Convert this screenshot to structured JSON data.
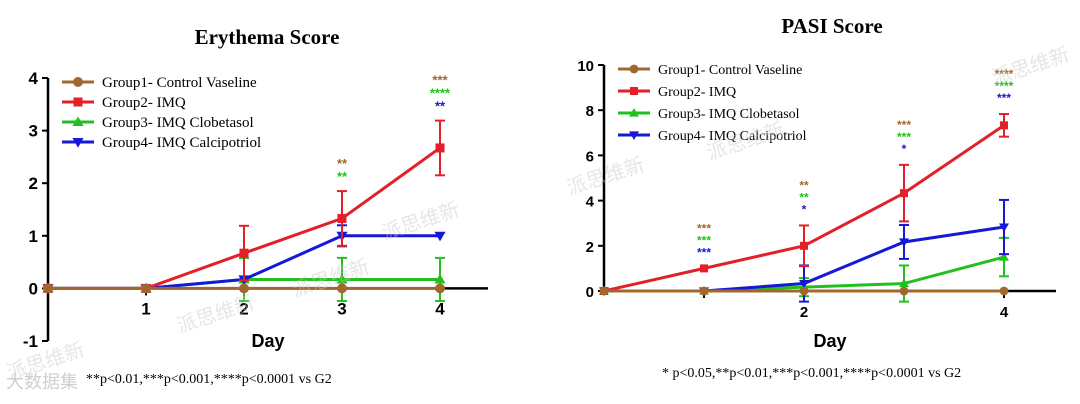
{
  "colors": {
    "group1": "#a0682f",
    "group2": "#e3202a",
    "group3": "#22c01f",
    "group4": "#1717d6",
    "axis": "#000000"
  },
  "chart_data": [
    {
      "type": "line",
      "title": "Erythema Score",
      "xlabel": "Day",
      "ylabel": "",
      "x": [
        0,
        1,
        2,
        3,
        4
      ],
      "xticks": [
        1,
        2,
        3,
        4
      ],
      "xtick_labels": [
        "1",
        "2",
        "3",
        "4"
      ],
      "xlim": [
        0,
        4.5
      ],
      "ylim": [
        -1,
        4
      ],
      "yticks": [
        -1,
        0,
        1,
        2,
        3,
        4
      ],
      "ytick_labels": [
        "-1",
        "0",
        "1",
        "2",
        "3",
        "4"
      ],
      "legend_position": "top-left",
      "grid": false,
      "series": [
        {
          "name": "Group1- Control Vaseline",
          "marker": "circle",
          "values": [
            0,
            0,
            0,
            0,
            0
          ],
          "errors": [
            0,
            0,
            0,
            0,
            0
          ]
        },
        {
          "name": "Group2- IMQ",
          "marker": "square",
          "values": [
            0,
            0,
            0.67,
            1.33,
            2.67
          ],
          "errors": [
            0,
            0,
            0.52,
            0.52,
            0.52
          ]
        },
        {
          "name": "Group3- IMQ Clobetasol",
          "marker": "triangle-up",
          "values": [
            0,
            0,
            0.17,
            0.17,
            0.17
          ],
          "errors": [
            0,
            0,
            0.41,
            0.41,
            0.41
          ]
        },
        {
          "name": "Group4- IMQ  Calcipotriol",
          "marker": "triangle-down",
          "values": [
            0,
            0,
            0.17,
            1,
            1
          ],
          "errors": [
            0,
            0,
            0,
            0.2,
            0
          ]
        }
      ],
      "annotations": [
        {
          "x": 3,
          "lines": [
            {
              "text": "**",
              "color": "#a0682f"
            },
            {
              "text": "**",
              "color": "#22c01f"
            }
          ]
        },
        {
          "x": 4,
          "lines": [
            {
              "text": "***",
              "color": "#a0682f"
            },
            {
              "text": "****",
              "color": "#22c01f"
            },
            {
              "text": "**",
              "color": "#1717d6"
            }
          ]
        }
      ],
      "footnote": "**p<0.01,***p<0.001,****p<0.0001 vs G2"
    },
    {
      "type": "line",
      "title": "PASI Score",
      "xlabel": "Day",
      "ylabel": "",
      "x": [
        0,
        1,
        2,
        3,
        4
      ],
      "xticks": [
        2,
        4
      ],
      "xtick_labels": [
        "2",
        "4"
      ],
      "xlim": [
        0,
        4.5
      ],
      "ylim": [
        0,
        10
      ],
      "yticks": [
        0,
        2,
        4,
        6,
        8,
        10
      ],
      "ytick_labels": [
        "0",
        "2",
        "4",
        "6",
        "8",
        "10"
      ],
      "legend_position": "top-left",
      "grid": false,
      "series": [
        {
          "name": "Group1- Control Vaseline",
          "marker": "circle",
          "values": [
            0,
            0,
            0,
            0,
            0
          ],
          "errors": [
            0,
            0,
            0,
            0,
            0
          ]
        },
        {
          "name": "Group2- IMQ",
          "marker": "square",
          "values": [
            0,
            1,
            2,
            4.33,
            7.33
          ],
          "errors": [
            0,
            0,
            0.9,
            1.25,
            0.5
          ]
        },
        {
          "name": "Group3- IMQ Clobetasol",
          "marker": "triangle-up",
          "values": [
            0,
            0,
            0.17,
            0.33,
            1.5
          ],
          "errors": [
            0,
            0,
            0.4,
            0.8,
            0.85
          ]
        },
        {
          "name": "Group4- IMQ  Calcipotriol",
          "marker": "triangle-down",
          "values": [
            0,
            0,
            0.33,
            2.17,
            2.83
          ],
          "errors": [
            0,
            0,
            0.8,
            0.75,
            1.2
          ]
        }
      ],
      "annotations": [
        {
          "x": 1,
          "lines": [
            {
              "text": "***",
              "color": "#a0682f"
            },
            {
              "text": "***",
              "color": "#22c01f"
            },
            {
              "text": "***",
              "color": "#1717d6"
            }
          ]
        },
        {
          "x": 2,
          "lines": [
            {
              "text": "**",
              "color": "#a0682f"
            },
            {
              "text": "**",
              "color": "#22c01f"
            },
            {
              "text": "*",
              "color": "#1717d6"
            }
          ]
        },
        {
          "x": 3,
          "lines": [
            {
              "text": "***",
              "color": "#a0682f"
            },
            {
              "text": "***",
              "color": "#22c01f"
            },
            {
              "text": "*",
              "color": "#1717d6"
            }
          ]
        },
        {
          "x": 4,
          "lines": [
            {
              "text": "****",
              "color": "#a0682f"
            },
            {
              "text": "****",
              "color": "#22c01f"
            },
            {
              "text": "***",
              "color": "#1717d6"
            }
          ]
        }
      ],
      "footnote": "* p<0.05,**p<0.01,***p<0.001,****p<0.0001 vs G2"
    }
  ],
  "watermark_text": "派思维新",
  "brand_text": "大数据集"
}
